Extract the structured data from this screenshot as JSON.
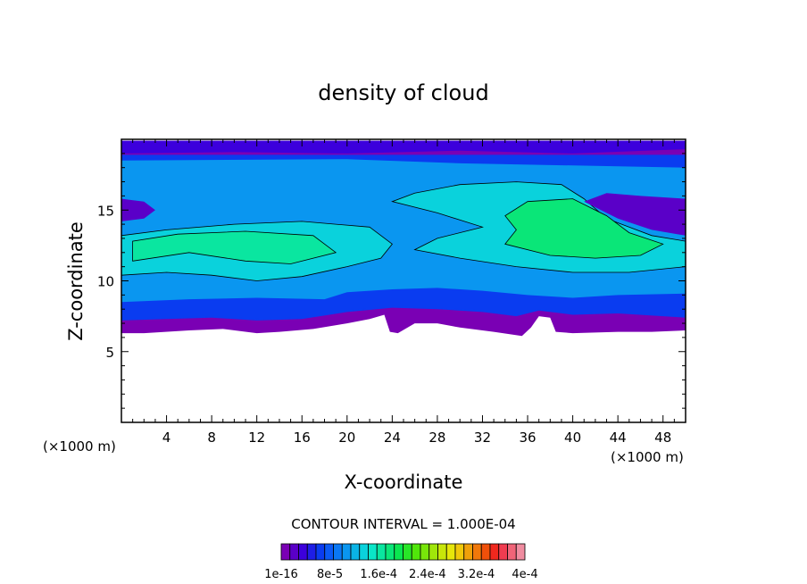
{
  "chart_data": {
    "type": "contour",
    "title": "density of cloud",
    "xlabel": "X-coordinate",
    "ylabel": "Z-coordinate",
    "x_unit": "(×1000 m)",
    "z_unit": "(×1000 m)",
    "xlim": [
      0,
      50
    ],
    "ylim": [
      0,
      20
    ],
    "x_ticks": [
      4,
      8,
      12,
      16,
      20,
      24,
      28,
      32,
      36,
      40,
      44,
      48
    ],
    "y_ticks": [
      5,
      10,
      15
    ],
    "contour_interval_label": "CONTOUR INTERVAL = 1.000E-04",
    "colorbar": {
      "colors": [
        "#7a00b4",
        "#5a00c8",
        "#3c00dc",
        "#1e1ee6",
        "#0a3cf0",
        "#0a5af5",
        "#0a78f5",
        "#0a96f0",
        "#0ab4e6",
        "#0ad2dc",
        "#0ae6c8",
        "#0ae6a0",
        "#0ae678",
        "#0ae650",
        "#28e628",
        "#50e60a",
        "#78e60a",
        "#a0e60a",
        "#c8e60a",
        "#e6e60a",
        "#f0c80a",
        "#f0a00a",
        "#f0780a",
        "#f0500a",
        "#f0281e",
        "#f03c50",
        "#f06478",
        "#f08ca0"
      ],
      "tick_labels": [
        "1e-16",
        "8e-5",
        "1.6e-4",
        "2.4e-4",
        "3.2e-4",
        "4e-4"
      ]
    },
    "regions": [
      {
        "name": "cloud-base-edge",
        "level": 0,
        "polygon": [
          [
            0,
            6.3
          ],
          [
            2,
            6.3
          ],
          [
            6,
            6.5
          ],
          [
            9,
            6.6
          ],
          [
            12,
            6.3
          ],
          [
            14,
            6.4
          ],
          [
            17,
            6.6
          ],
          [
            20,
            7.0
          ],
          [
            22,
            7.3
          ],
          [
            23.3,
            7.6
          ],
          [
            23.8,
            6.4
          ],
          [
            24.5,
            6.3
          ],
          [
            26,
            7.0
          ],
          [
            28,
            7.0
          ],
          [
            30,
            6.7
          ],
          [
            33,
            6.4
          ],
          [
            35.5,
            6.1
          ],
          [
            36.3,
            6.7
          ],
          [
            37,
            7.5
          ],
          [
            38,
            7.4
          ],
          [
            38.5,
            6.4
          ],
          [
            40,
            6.3
          ],
          [
            44,
            6.4
          ],
          [
            47,
            6.4
          ],
          [
            50,
            6.5
          ],
          [
            50,
            19.9
          ],
          [
            0,
            19.9
          ]
        ]
      },
      {
        "name": "cloud-lower-band",
        "level": 4,
        "polygon": [
          [
            0,
            7.2
          ],
          [
            4,
            7.3
          ],
          [
            8,
            7.4
          ],
          [
            12,
            7.2
          ],
          [
            16,
            7.3
          ],
          [
            20,
            7.8
          ],
          [
            24,
            8.1
          ],
          [
            28,
            8.0
          ],
          [
            32,
            7.8
          ],
          [
            35,
            7.5
          ],
          [
            37,
            7.9
          ],
          [
            40,
            7.6
          ],
          [
            44,
            7.7
          ],
          [
            50,
            7.4
          ],
          [
            50,
            18.9
          ],
          [
            0,
            18.9
          ]
        ]
      },
      {
        "name": "cloud-mid-band",
        "level": 7,
        "polygon": [
          [
            0,
            8.5
          ],
          [
            6,
            8.7
          ],
          [
            12,
            8.8
          ],
          [
            18,
            8.7
          ],
          [
            20,
            9.2
          ],
          [
            24,
            9.4
          ],
          [
            28,
            9.5
          ],
          [
            32,
            9.3
          ],
          [
            36,
            9.0
          ],
          [
            40,
            8.8
          ],
          [
            44,
            9.0
          ],
          [
            50,
            9.1
          ],
          [
            50,
            18.0
          ],
          [
            30,
            18.3
          ],
          [
            20,
            18.6
          ],
          [
            0,
            18.5
          ]
        ]
      },
      {
        "name": "cloud-core-left",
        "level": 9,
        "polygon": [
          [
            0,
            10.4
          ],
          [
            4,
            10.6
          ],
          [
            8,
            10.4
          ],
          [
            12,
            10.0
          ],
          [
            16,
            10.3
          ],
          [
            20,
            11.0
          ],
          [
            23,
            11.6
          ],
          [
            24,
            12.6
          ],
          [
            22,
            13.8
          ],
          [
            16,
            14.2
          ],
          [
            10,
            14.0
          ],
          [
            4,
            13.6
          ],
          [
            0,
            13.2
          ]
        ]
      },
      {
        "name": "cloud-core-left-bright",
        "level": 11,
        "polygon": [
          [
            1,
            11.4
          ],
          [
            6,
            12.0
          ],
          [
            11,
            11.4
          ],
          [
            15,
            11.2
          ],
          [
            19,
            12.0
          ],
          [
            17,
            13.2
          ],
          [
            11,
            13.5
          ],
          [
            5,
            13.3
          ],
          [
            1,
            12.8
          ]
        ]
      },
      {
        "name": "cloud-core-right",
        "level": 9,
        "polygon": [
          [
            26,
            12.2
          ],
          [
            30,
            11.6
          ],
          [
            35,
            11.0
          ],
          [
            40,
            10.6
          ],
          [
            45,
            10.6
          ],
          [
            50,
            11.0
          ],
          [
            50,
            12.8
          ],
          [
            47,
            13.2
          ],
          [
            43,
            14.4
          ],
          [
            41,
            15.8
          ],
          [
            39,
            16.8
          ],
          [
            35,
            17.0
          ],
          [
            30,
            16.8
          ],
          [
            26,
            16.2
          ],
          [
            24,
            15.6
          ],
          [
            28,
            14.8
          ],
          [
            32,
            13.8
          ],
          [
            28,
            13.0
          ]
        ]
      },
      {
        "name": "cloud-core-right-bright",
        "level": 12,
        "polygon": [
          [
            34,
            12.6
          ],
          [
            38,
            11.8
          ],
          [
            42,
            11.6
          ],
          [
            46,
            11.8
          ],
          [
            48,
            12.6
          ],
          [
            45,
            13.4
          ],
          [
            43,
            14.6
          ],
          [
            40,
            15.8
          ],
          [
            36,
            15.6
          ],
          [
            34,
            14.6
          ],
          [
            35,
            13.6
          ]
        ]
      },
      {
        "name": "cloud-upper-right-edge",
        "level": 1,
        "polygon": [
          [
            41,
            15.6
          ],
          [
            44,
            14.4
          ],
          [
            47,
            13.6
          ],
          [
            50,
            13.2
          ],
          [
            50,
            15.8
          ],
          [
            46,
            16.0
          ],
          [
            43,
            16.2
          ]
        ]
      },
      {
        "name": "cloud-upper-left-edge",
        "level": 1,
        "polygon": [
          [
            0,
            14.2
          ],
          [
            2,
            14.4
          ],
          [
            3,
            15.0
          ],
          [
            2,
            15.6
          ],
          [
            0,
            15.8
          ]
        ]
      },
      {
        "name": "cloud-top-edge",
        "level": 2,
        "polygon": [
          [
            0,
            19.9
          ],
          [
            50,
            19.9
          ],
          [
            50,
            19.3
          ],
          [
            40,
            19.0
          ],
          [
            30,
            19.2
          ],
          [
            20,
            19.0
          ],
          [
            10,
            19.1
          ],
          [
            0,
            19.0
          ]
        ]
      }
    ]
  }
}
